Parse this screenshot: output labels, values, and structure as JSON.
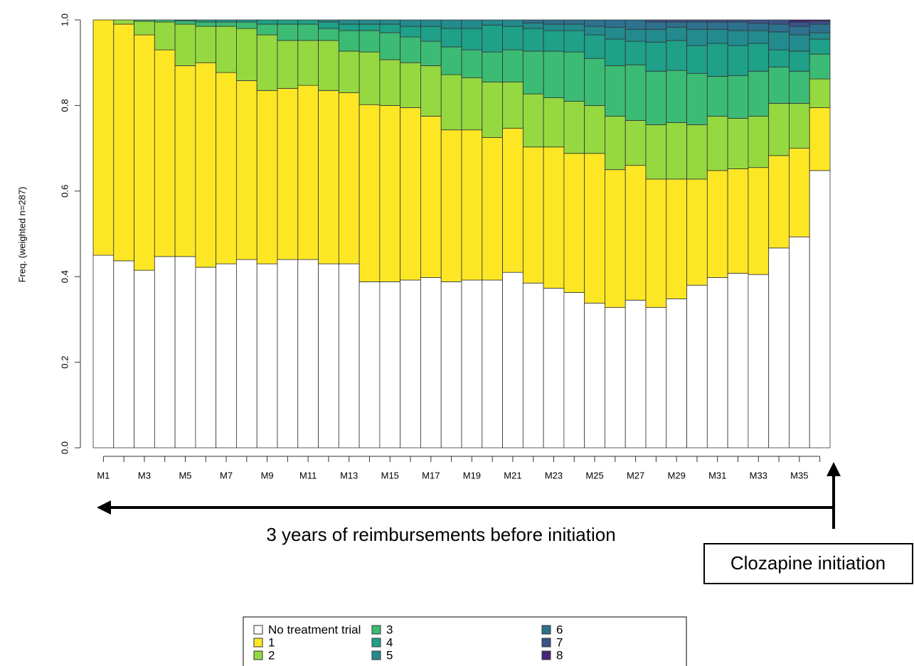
{
  "chart_data": {
    "type": "stacked-bar",
    "y_label": "Freq. (weighted n=287)",
    "categories": [
      "M1",
      null,
      "M3",
      null,
      "M5",
      null,
      "M7",
      null,
      "M9",
      null,
      "M11",
      null,
      "M13",
      null,
      "M15",
      null,
      "M17",
      null,
      "M19",
      null,
      "M21",
      null,
      "M23",
      null,
      "M25",
      null,
      "M27",
      null,
      "M29",
      null,
      "M31",
      null,
      "M33",
      null,
      "M35",
      null
    ],
    "ylim": [
      0,
      1
    ],
    "yticks": [
      {
        "value": 0,
        "label": "0.0"
      },
      0.2,
      0.4,
      0.6,
      0.8,
      {
        "value": 1,
        "label": "1.0"
      }
    ],
    "series": [
      {
        "name": "No treatment trial",
        "color": "#ffffff",
        "values": [
          0.45,
          0.437,
          0.415,
          0.447,
          0.447,
          0.422,
          0.43,
          0.44,
          0.43,
          0.44,
          0.44,
          0.43,
          0.43,
          0.388,
          0.388,
          0.392,
          0.398,
          0.388,
          0.392,
          0.392,
          0.41,
          0.385,
          0.373,
          0.363,
          0.338,
          0.328,
          0.345,
          0.328,
          0.348,
          0.38,
          0.398,
          0.408,
          0.405,
          0.467,
          0.493,
          0.648
        ]
      },
      {
        "name": "1",
        "color": "#fde725",
        "values": [
          0.55,
          0.553,
          0.55,
          0.483,
          0.446,
          0.478,
          0.447,
          0.418,
          0.405,
          0.4,
          0.407,
          0.405,
          0.4,
          0.414,
          0.412,
          0.403,
          0.377,
          0.355,
          0.351,
          0.333,
          0.337,
          0.318,
          0.33,
          0.325,
          0.35,
          0.322,
          0.315,
          0.3,
          0.28,
          0.248,
          0.25,
          0.244,
          0.25,
          0.216,
          0.207,
          0.147
        ]
      },
      {
        "name": "2",
        "color": "#95d840",
        "values": [
          0,
          0.01,
          0.032,
          0.065,
          0.097,
          0.085,
          0.108,
          0.122,
          0.13,
          0.112,
          0.105,
          0.117,
          0.097,
          0.123,
          0.107,
          0.105,
          0.118,
          0.129,
          0.122,
          0.13,
          0.108,
          0.124,
          0.115,
          0.122,
          0.112,
          0.125,
          0.105,
          0.127,
          0.132,
          0.127,
          0.127,
          0.118,
          0.12,
          0.122,
          0.105,
          0.067
        ]
      },
      {
        "name": "3",
        "color": "#3cbb75",
        "values": [
          0,
          0,
          0.003,
          0.005,
          0.008,
          0.01,
          0.01,
          0.015,
          0.025,
          0.038,
          0.038,
          0.028,
          0.048,
          0.05,
          0.063,
          0.06,
          0.057,
          0.065,
          0.065,
          0.07,
          0.075,
          0.1,
          0.109,
          0.115,
          0.11,
          0.118,
          0.13,
          0.125,
          0.122,
          0.12,
          0.093,
          0.1,
          0.105,
          0.085,
          0.075,
          0.058
        ]
      },
      {
        "name": "4",
        "color": "#1fa088",
        "values": [
          0,
          0,
          0,
          0,
          0.002,
          0.005,
          0.005,
          0.005,
          0.01,
          0.01,
          0.01,
          0.015,
          0.015,
          0.015,
          0.02,
          0.025,
          0.035,
          0.043,
          0.05,
          0.063,
          0.055,
          0.053,
          0.048,
          0.05,
          0.055,
          0.062,
          0.055,
          0.068,
          0.07,
          0.065,
          0.077,
          0.07,
          0.065,
          0.04,
          0.047,
          0.035
        ]
      },
      {
        "name": "5",
        "color": "#238a8d",
        "values": [
          0,
          0,
          0,
          0,
          0,
          0,
          0,
          0,
          0,
          0,
          0,
          0.005,
          0.01,
          0.01,
          0.01,
          0.015,
          0.015,
          0.02,
          0.02,
          0.012,
          0.015,
          0.013,
          0.015,
          0.015,
          0.02,
          0.028,
          0.028,
          0.03,
          0.031,
          0.038,
          0.033,
          0.035,
          0.03,
          0.042,
          0.038,
          0.015
        ]
      },
      {
        "name": "6",
        "color": "#2d718e",
        "values": [
          0,
          0,
          0,
          0,
          0,
          0,
          0,
          0,
          0,
          0,
          0,
          0,
          0,
          0,
          0,
          0,
          0,
          0,
          0,
          0,
          0,
          0.007,
          0.01,
          0.01,
          0.015,
          0.017,
          0.022,
          0.017,
          0.012,
          0.017,
          0.017,
          0.02,
          0.017,
          0.018,
          0.02,
          0.02
        ]
      },
      {
        "name": "7",
        "color": "#3b528b",
        "values": [
          0,
          0,
          0,
          0,
          0,
          0,
          0,
          0,
          0,
          0,
          0,
          0,
          0,
          0,
          0,
          0,
          0,
          0,
          0,
          0,
          0,
          0,
          0,
          0,
          0,
          0,
          0,
          0.005,
          0.005,
          0.005,
          0.005,
          0.005,
          0.008,
          0.01,
          0.01,
          0.007
        ]
      },
      {
        "name": "8",
        "color": "#482677",
        "values": [
          0,
          0,
          0,
          0,
          0,
          0,
          0,
          0,
          0,
          0,
          0,
          0,
          0,
          0,
          0,
          0,
          0,
          0,
          0,
          0,
          0,
          0,
          0,
          0,
          0,
          0,
          0,
          0,
          0,
          0,
          0,
          0,
          0,
          0,
          0.005,
          0.003
        ]
      }
    ],
    "annotations": [
      "3 years of reimbursements before initiation",
      "Clozapine initiation"
    ]
  }
}
